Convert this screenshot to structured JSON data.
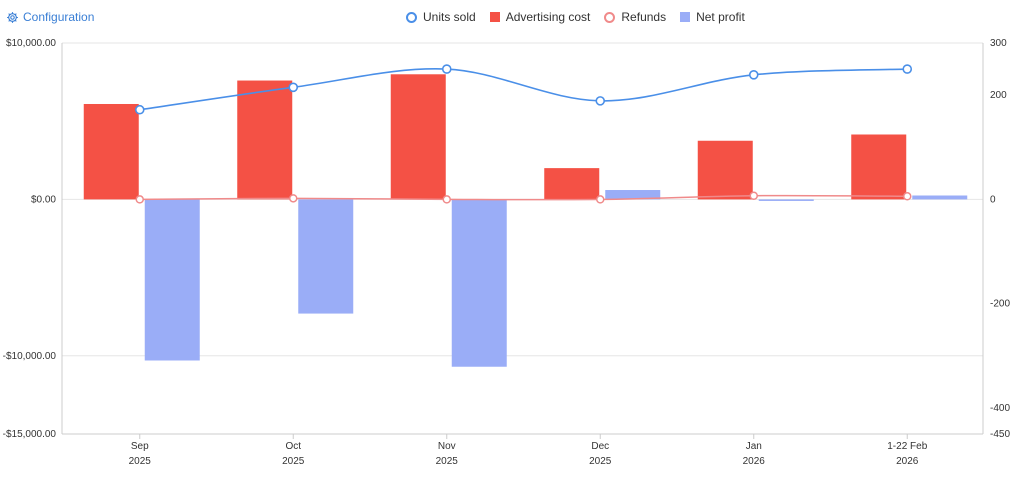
{
  "config": {
    "label": "Configuration",
    "icon": "gear-icon"
  },
  "colors": {
    "units_sold": "#4a8fe8",
    "advertising_cost": "#f45145",
    "refunds": "#f08a8a",
    "net_profit": "#9aadf7",
    "grid": "#e6e6e6",
    "axis": "#cccccc"
  },
  "chart_data": {
    "type": "bar",
    "categories": [
      "Sep",
      "Oct",
      "Nov",
      "Dec",
      "Jan",
      "1-22 Feb"
    ],
    "category_years": [
      "2025",
      "2025",
      "2025",
      "2025",
      "2026",
      "2026"
    ],
    "series": [
      {
        "name": "Units sold",
        "kind": "line",
        "axis": "right",
        "values": [
          172,
          215,
          250,
          189,
          239,
          250
        ]
      },
      {
        "name": "Advertising cost",
        "kind": "bar",
        "axis": "left",
        "values": [
          6100,
          7600,
          8000,
          2000,
          3750,
          4150
        ]
      },
      {
        "name": "Refunds",
        "kind": "line",
        "axis": "right",
        "values": [
          0,
          2,
          0,
          0,
          7,
          6
        ]
      },
      {
        "name": "Net profit",
        "kind": "bar",
        "axis": "left",
        "values": [
          -10300,
          -7300,
          -10700,
          600,
          -100,
          250
        ]
      }
    ],
    "y_left": {
      "range": [
        -15000,
        10000
      ],
      "ticks": [
        10000,
        0,
        -10000,
        -15000
      ],
      "tick_labels": [
        "$10,000.00",
        "$0.00",
        "-$10,000.00",
        "-$15,000.00"
      ]
    },
    "y_right": {
      "range": [
        -450,
        300
      ],
      "ticks": [
        300,
        200,
        0,
        -200,
        -400,
        -450
      ],
      "tick_labels": [
        "300",
        "200",
        "0",
        "-200",
        "-400",
        "-450"
      ]
    },
    "legend_position": "top-center",
    "grid": true
  }
}
